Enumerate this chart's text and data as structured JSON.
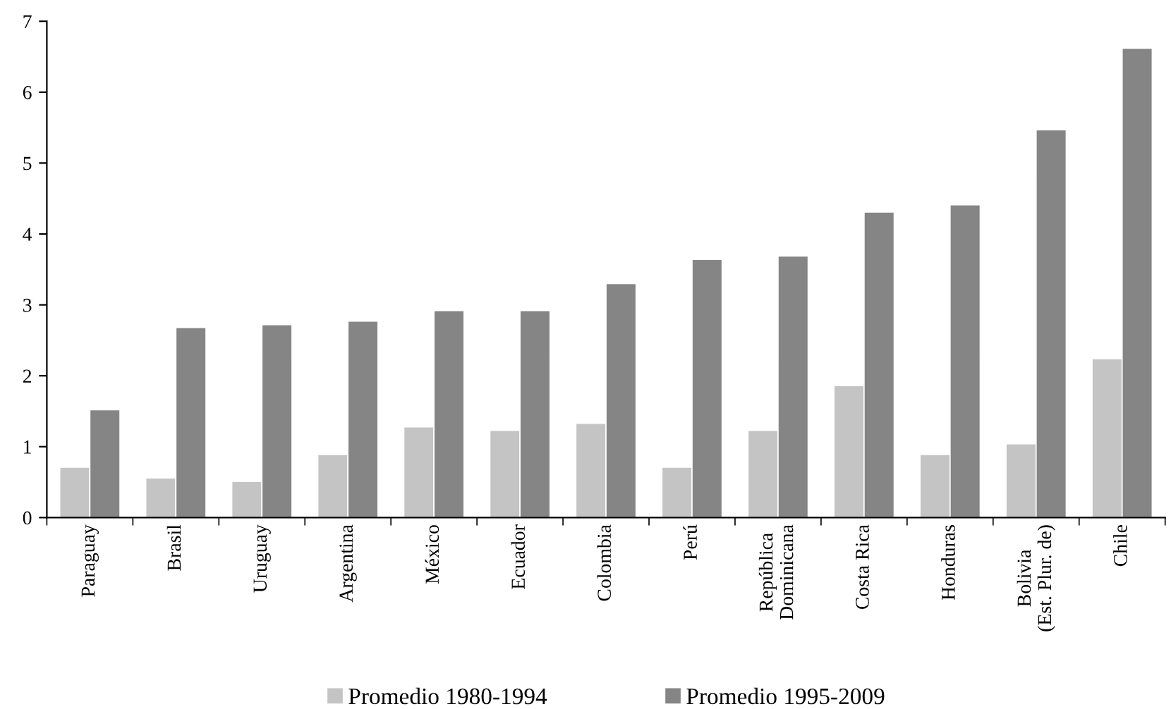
{
  "chart_data": {
    "type": "bar",
    "categories": [
      "Paraguay",
      "Brasil",
      "Uruguay",
      "Argentina",
      "México",
      "Ecuador",
      "Colombia",
      "Perú",
      "República\nDominicana",
      "Costa Rica",
      "Honduras",
      "Bolivia\n(Est. Plur. de)",
      "Chile"
    ],
    "series": [
      {
        "name": "Promedio 1980-1994",
        "color": "#c4c4c4",
        "values": [
          0.71,
          0.56,
          0.51,
          0.89,
          1.28,
          1.23,
          1.33,
          0.71,
          1.23,
          1.86,
          0.89,
          1.04,
          2.24
        ]
      },
      {
        "name": "Promedio 1995-2009",
        "color": "#858585",
        "values": [
          1.52,
          2.68,
          2.72,
          2.77,
          2.92,
          2.92,
          3.3,
          3.64,
          3.69,
          4.31,
          4.41,
          5.47,
          6.62
        ]
      }
    ],
    "ylim": [
      0,
      7
    ],
    "yticks": [
      0,
      1,
      2,
      3,
      4,
      5,
      6,
      7
    ],
    "grid": false,
    "legend": "bottom"
  }
}
